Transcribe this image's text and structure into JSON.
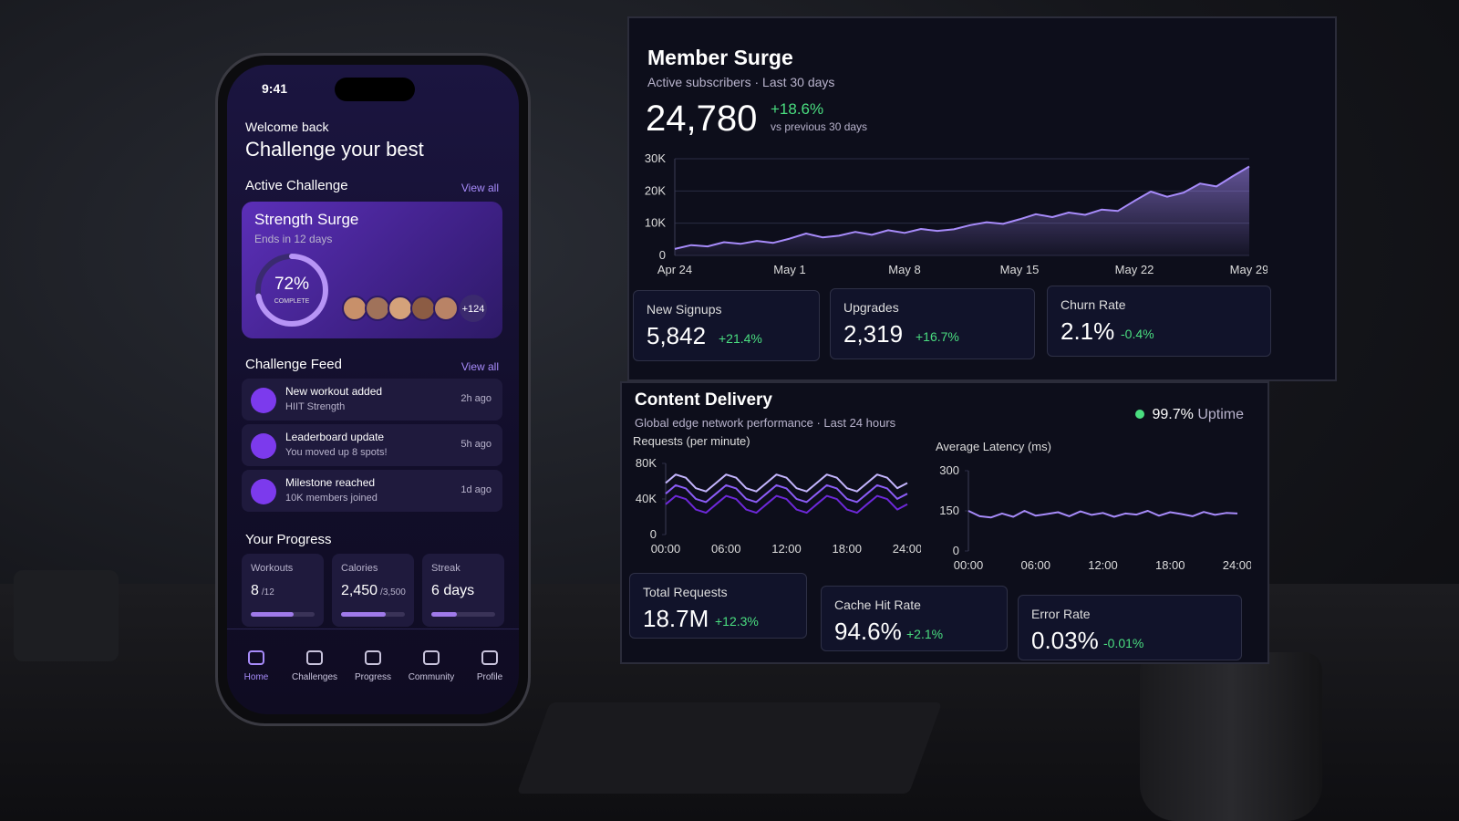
{
  "phone": {
    "time": "9:41",
    "greeting": "Welcome back",
    "headline": "Challenge your best",
    "active_heading": "Active Challenge",
    "active_link": "View all",
    "challenge": {
      "title": "Strength Surge",
      "subtitle": "Ends in 12 days",
      "progress": {
        "value": 72,
        "label": "72%"
      },
      "caption": "COMPLETE",
      "more": "+124"
    },
    "feed_heading": "Challenge Feed",
    "feed_link": "View all",
    "feed": [
      {
        "title": "New workout added",
        "detail": "HIIT Strength",
        "time": "2h ago"
      },
      {
        "title": "Leaderboard update",
        "detail": "You moved up 8 spots!",
        "time": "5h ago"
      },
      {
        "title": "Milestone reached",
        "detail": "10K members joined",
        "time": "1d ago"
      }
    ],
    "progress_heading": "Your Progress",
    "progress": [
      {
        "label": "Workouts",
        "value": 8,
        "target": {
          "value": 12,
          "label": "/12"
        }
      },
      {
        "label": "Calories",
        "value": {
          "value": 2450,
          "label": "2,450"
        },
        "target": {
          "value": 3500,
          "label": "/3,500"
        }
      },
      {
        "label": "Streak",
        "value": {
          "value": 6,
          "label": "6 days"
        }
      }
    ],
    "nav": [
      "Home",
      "Challenges",
      "Progress",
      "Community",
      "Profile"
    ]
  },
  "member_surge": {
    "title": "Member Surge",
    "subtitle": "Active subscribers · Last 30 days",
    "total": "24,780",
    "change": "+18.6%",
    "change_note": "vs previous 30 days",
    "chart_data": {
      "type": "line",
      "categories": [
        "Apr 24",
        null,
        null,
        null,
        null,
        null,
        null,
        "May 1",
        null,
        null,
        null,
        null,
        null,
        null,
        "May 8",
        null,
        null,
        null,
        null,
        null,
        null,
        "May 15",
        null,
        null,
        null,
        null,
        null,
        null,
        "May 22",
        null,
        null,
        null,
        null,
        null,
        null,
        "May 29"
      ],
      "values": [
        2000,
        3200,
        2800,
        4100,
        3600,
        4500,
        3900,
        5200,
        6800,
        5600,
        6100,
        7300,
        6400,
        7800,
        7000,
        8200,
        7600,
        8100,
        9400,
        10300,
        9800,
        11200,
        12800,
        11900,
        13300,
        12600,
        14200,
        13800,
        16900,
        19800,
        18200,
        19500,
        22300,
        21400,
        24600,
        27600
      ],
      "color": "#a78bfa",
      "area": true,
      "ylim": [
        0,
        30000
      ],
      "yticks": [
        0,
        {
          "value": 10000,
          "label": "10K"
        },
        {
          "value": 20000,
          "label": "20K"
        },
        {
          "value": 30000,
          "label": "30K"
        }
      ],
      "grid": true
    },
    "kpis": [
      {
        "label": "New Signups",
        "value": "5,842",
        "change": "+21.4%"
      },
      {
        "label": "Upgrades",
        "value": "2,319",
        "change": "+16.7%"
      },
      {
        "label": "Churn Rate",
        "value": "2.1%",
        "change": "-0.4%"
      }
    ]
  },
  "content_delivery": {
    "title": "Content Delivery",
    "subtitle": "Global edge network performance · Last 24 hours",
    "uptime": "99.7%",
    "uptime_label": "Uptime",
    "requests": {
      "chart_data": {
        "type": "line",
        "title": "Requests (per minute)",
        "categories": [
          "00:00",
          null,
          null,
          null,
          null,
          null,
          "06:00",
          null,
          null,
          null,
          null,
          null,
          "12:00",
          null,
          null,
          null,
          null,
          null,
          "18:00",
          null,
          null,
          null,
          null,
          null,
          "24:00"
        ],
        "series": [
          {
            "color": "#c4b5fd",
            "values": [
              58000,
              67500,
              63900,
              52100,
              48500,
              58000,
              67500,
              63900,
              52100,
              48500,
              58000,
              67500,
              63900,
              52100,
              48500,
              58000,
              67500,
              63900,
              52100,
              48500,
              58000,
              67500,
              63900,
              52100,
              58000
            ]
          },
          {
            "color": "#8b5cf6",
            "values": [
              46000,
              55500,
              51900,
              40100,
              36500,
              46000,
              55500,
              51900,
              40100,
              36500,
              46000,
              55500,
              51900,
              40100,
              36500,
              46000,
              55500,
              51900,
              40100,
              36500,
              46000,
              55500,
              51900,
              40100,
              46000
            ]
          },
          {
            "color": "#6d28d9",
            "values": [
              34000,
              43500,
              39900,
              28100,
              24500,
              34000,
              43500,
              39900,
              28100,
              24500,
              34000,
              43500,
              39900,
              28100,
              24500,
              34000,
              43500,
              39900,
              28100,
              24500,
              34000,
              43500,
              39900,
              28100,
              34000
            ]
          }
        ],
        "ylim": [
          0,
          80000
        ],
        "yticks": [
          0,
          {
            "value": 40000,
            "label": "40K"
          },
          {
            "value": 80000,
            "label": "80K"
          }
        ],
        "grid": false
      }
    },
    "latency": {
      "chart_data": {
        "type": "line",
        "title": "Average Latency (ms)",
        "categories": [
          "00:00",
          null,
          null,
          null,
          null,
          null,
          "06:00",
          null,
          null,
          null,
          null,
          null,
          "12:00",
          null,
          null,
          null,
          null,
          null,
          "18:00",
          null,
          null,
          null,
          null,
          null,
          "24:00"
        ],
        "values": [
          150,
          130,
          125,
          140,
          128,
          150,
          132,
          138,
          145,
          130,
          148,
          135,
          142,
          128,
          140,
          136,
          150,
          132,
          145,
          138,
          130,
          146,
          135,
          142,
          140
        ],
        "color": "#a78bfa",
        "ylim": [
          0,
          300
        ],
        "yticks": [
          0,
          150,
          300
        ],
        "grid": false
      }
    },
    "kpis": [
      {
        "label": "Total Requests",
        "value": "18.7M",
        "change": "+12.3%"
      },
      {
        "label": "Cache Hit Rate",
        "value": "94.6%",
        "change": "+2.1%"
      },
      {
        "label": "Error Rate",
        "value": "0.03%",
        "change": "-0.01%"
      }
    ]
  }
}
